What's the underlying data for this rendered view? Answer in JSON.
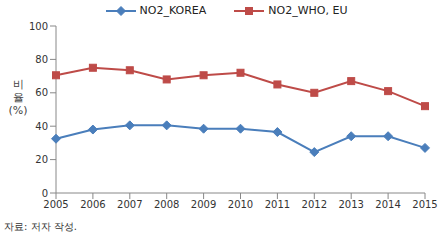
{
  "chart_data": {
    "type": "line",
    "categories": [
      "2005",
      "2006",
      "2007",
      "2008",
      "2009",
      "2010",
      "2011",
      "2012",
      "2013",
      "2014",
      "2015"
    ],
    "series": [
      {
        "name": "NO2_KOREA",
        "color": "#4a7ebb",
        "marker": "diamond",
        "values": [
          32.5,
          38,
          40.5,
          40.5,
          38.5,
          38.5,
          36.5,
          24.5,
          34,
          34,
          27
        ]
      },
      {
        "name": "NO2_WHO, EU",
        "color": "#be4b48",
        "marker": "square",
        "values": [
          70.5,
          75,
          73.5,
          68,
          70.5,
          72,
          65,
          60,
          67,
          61,
          52
        ]
      }
    ],
    "ylabel": "비율 (%)",
    "ylim": [
      0,
      100
    ],
    "yticks": [
      0,
      20,
      40,
      60,
      80,
      100
    ],
    "grid": false,
    "legend": "top",
    "annotation": "자료: 저자 작성."
  }
}
